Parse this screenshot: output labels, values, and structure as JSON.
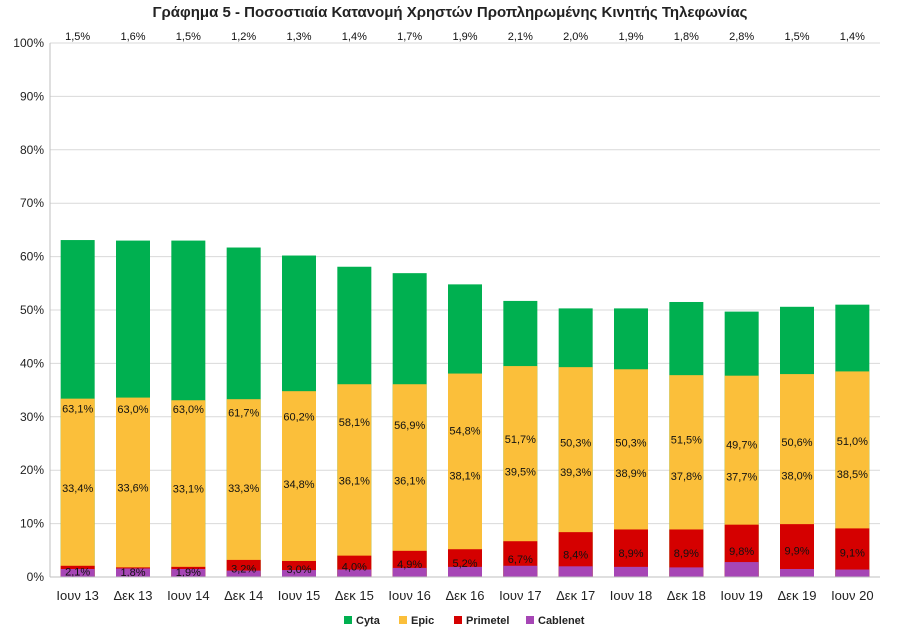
{
  "chart_data": {
    "type": "bar",
    "stacked": true,
    "title": "Γράφημα 5 - Ποσοστιαία Κατανομή Χρηστών Προπληρωμένης Κινητής Τηλεφωνίας",
    "xlabel": "",
    "ylabel": "",
    "ylim": [
      0,
      100
    ],
    "yticks": [
      "0%",
      "10%",
      "20%",
      "30%",
      "40%",
      "50%",
      "60%",
      "70%",
      "80%",
      "90%",
      "100%"
    ],
    "grid": true,
    "legend": "bottom",
    "categories": [
      "Ιουν 13",
      "Δεκ 13",
      "Ιουν 14",
      "Δεκ 14",
      "Ιουν 15",
      "Δεκ 15",
      "Ιουν 16",
      "Δεκ 16",
      "Ιουν 17",
      "Δεκ 17",
      "Ιουν 18",
      "Δεκ 18",
      "Ιουν 19",
      "Δεκ 19",
      "Ιουν 20"
    ],
    "series": [
      {
        "name": "Cyta",
        "color": "#00b050",
        "values": [
          63.1,
          63.0,
          63.0,
          61.7,
          60.2,
          58.1,
          56.9,
          54.8,
          51.7,
          50.3,
          50.3,
          51.5,
          49.7,
          50.6,
          51.0
        ],
        "labels": [
          "63,1%",
          "63,0%",
          "63,0%",
          "61,7%",
          "60,2%",
          "58,1%",
          "56,9%",
          "54,8%",
          "51,7%",
          "50,3%",
          "50,3%",
          "51,5%",
          "49,7%",
          "50,6%",
          "51,0%"
        ]
      },
      {
        "name": "Epic",
        "color": "#fbbf3a",
        "values": [
          33.4,
          33.6,
          33.1,
          33.3,
          34.8,
          36.1,
          36.1,
          38.1,
          39.5,
          39.3,
          38.9,
          37.8,
          37.7,
          38.0,
          38.5
        ],
        "labels": [
          "33,4%",
          "33,6%",
          "33,1%",
          "33,3%",
          "34,8%",
          "36,1%",
          "36,1%",
          "38,1%",
          "39,5%",
          "39,3%",
          "38,9%",
          "37,8%",
          "37,7%",
          "38,0%",
          "38,5%"
        ]
      },
      {
        "name": "Primetel",
        "color": "#d50000",
        "values": [
          2.1,
          1.8,
          1.9,
          3.2,
          3.0,
          4.0,
          4.9,
          5.2,
          6.7,
          8.4,
          8.9,
          8.9,
          9.8,
          9.9,
          9.1
        ],
        "labels": [
          "2,1%",
          "1,8%",
          "1,9%",
          "3,2%",
          "3,0%",
          "4,0%",
          "4,9%",
          "5,2%",
          "6,7%",
          "8,4%",
          "8,9%",
          "8,9%",
          "9,8%",
          "9,9%",
          "9,1%"
        ]
      },
      {
        "name": "Cablenet",
        "color": "#a646b5",
        "values": [
          1.5,
          1.6,
          1.5,
          1.2,
          1.3,
          1.4,
          1.7,
          1.9,
          2.1,
          2.0,
          1.9,
          1.8,
          2.8,
          1.5,
          1.4
        ],
        "labels": [
          "1,5%",
          "1,6%",
          "1,5%",
          "1,2%",
          "1,3%",
          "1,4%",
          "1,7%",
          "1,9%",
          "2,1%",
          "2,0%",
          "1,9%",
          "1,8%",
          "2,8%",
          "1,5%",
          "1,4%"
        ]
      }
    ]
  }
}
